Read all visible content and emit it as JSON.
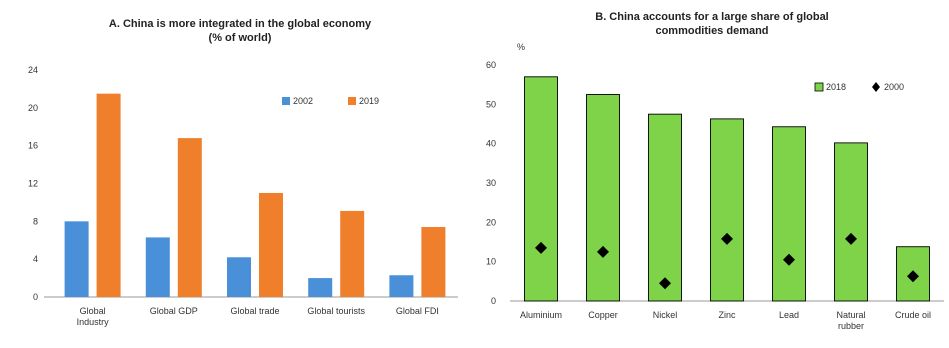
{
  "chart_data": [
    {
      "type": "bar",
      "title": "A. China is more integrated in the global economy",
      "subtitle": "(% of world)",
      "categories": [
        "Global Industry",
        "Global GDP",
        "Global trade",
        "Global tourists",
        "Global FDI"
      ],
      "series": [
        {
          "name": "2002",
          "color": "#4a90d9",
          "values": [
            8,
            6.3,
            4.2,
            2,
            2.3
          ]
        },
        {
          "name": "2019",
          "color": "#f07f2c",
          "values": [
            21.5,
            16.8,
            11,
            9.1,
            7.4
          ]
        }
      ],
      "yticks": [
        "0",
        "4",
        "8",
        "12",
        "16",
        "20",
        "24"
      ],
      "ylim": [
        0,
        24
      ],
      "legend": "top-right",
      "grid": false
    },
    {
      "type": "bar",
      "title": "B. China accounts for a large share of global",
      "subtitle": "commodities demand",
      "ylabel": "%",
      "categories": [
        "Aluminium",
        "Copper",
        "Nickel",
        "Zinc",
        "Lead",
        "Natural rubber",
        "Crude oil"
      ],
      "series": [
        {
          "name": "2018",
          "color": "#7ed348",
          "marker": "bar",
          "values": [
            57,
            52.5,
            47.5,
            46.3,
            44.3,
            40.2,
            13.8
          ]
        },
        {
          "name": "2000",
          "color": "#000000",
          "marker": "diamond",
          "values": [
            13.5,
            12.5,
            4.5,
            15.8,
            10.5,
            15.8,
            6.3
          ]
        }
      ],
      "yticks": [
        "0",
        "10",
        "20",
        "30",
        "40",
        "50",
        "60"
      ],
      "ylim": [
        0,
        60
      ],
      "legend": "top-right",
      "grid": false
    }
  ]
}
